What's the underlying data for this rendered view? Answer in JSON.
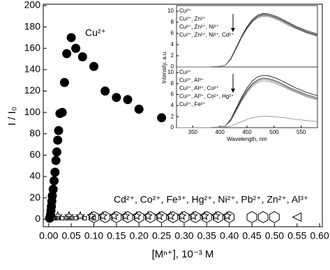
{
  "chart_data": [
    {
      "type": "scatter",
      "ylabel": "I / I₀",
      "xlabel": "[Mⁿ⁺], 10⁻³ M",
      "annotations": [
        "Cu²⁺",
        "Cd²⁺, Co²⁺, Fe³⁺, Hg²⁺, Ni²⁺, Pb²⁺, Zn²⁺, Al³⁺"
      ],
      "xlim": [
        -0.012,
        0.606
      ],
      "ylim": [
        -7,
        200
      ],
      "xticks": [
        {
          "value": 0,
          "label": "0.00"
        },
        {
          "value": 0.05,
          "label": "0.05"
        },
        {
          "value": 0.1,
          "label": "0.10"
        },
        {
          "value": 0.15,
          "label": "0.15"
        },
        {
          "value": 0.2,
          "label": "0.20"
        },
        {
          "value": 0.25,
          "label": "0.25"
        },
        {
          "value": 0.3,
          "label": "0.30"
        },
        {
          "value": 0.35,
          "label": "0.35"
        },
        {
          "value": 0.4,
          "label": "0.40"
        },
        {
          "value": 0.45,
          "label": "0.45"
        },
        {
          "value": 0.5,
          "label": "0.50"
        },
        {
          "value": 0.55,
          "label": "0.55"
        },
        {
          "value": 0.6,
          "label": "0.60"
        }
      ],
      "yticks": [
        0,
        20,
        40,
        60,
        80,
        100,
        120,
        140,
        160,
        180,
        200
      ],
      "series": [
        {
          "marker": "circle-filled",
          "color": "#000000",
          "x": [
            0.002,
            0.004,
            0.005,
            0.006,
            0.007,
            0.008,
            0.01,
            0.012,
            0.014,
            0.016,
            0.018,
            0.02,
            0.022,
            0.025,
            0.03,
            0.035,
            0.04,
            0.05,
            0.06,
            0.075,
            0.1,
            0.125,
            0.15,
            0.175,
            0.2,
            0.25
          ],
          "values": [
            1,
            4,
            8,
            12,
            17,
            22,
            28,
            36,
            44,
            55,
            63,
            74,
            83,
            99,
            100,
            128,
            155,
            170,
            160,
            152,
            143,
            120,
            114,
            112,
            103,
            95
          ]
        },
        {
          "marker": "square",
          "color": "#000000",
          "x": [
            0.002,
            0.005,
            0.01,
            0.015,
            0.02,
            0.03,
            0.04,
            0.05,
            0.06,
            0.08,
            0.1
          ],
          "values": [
            1,
            1,
            1,
            1,
            1,
            1,
            1,
            1,
            1,
            1,
            1
          ]
        },
        {
          "marker": "star",
          "color": "#000000",
          "x": [
            0.02,
            0.045,
            0.07,
            0.095,
            0.12,
            0.145,
            0.17,
            0.195,
            0.22,
            0.245,
            0.27,
            0.295,
            0.32,
            0.345,
            0.37,
            0.395
          ],
          "values": [
            3,
            3,
            3,
            3,
            3,
            3,
            3,
            3,
            3,
            3,
            3,
            3,
            3,
            3,
            3,
            3
          ]
        },
        {
          "marker": "hexagon",
          "color": "#000000",
          "x": [
            0.1,
            0.125,
            0.15,
            0.175,
            0.2,
            0.225,
            0.25,
            0.275,
            0.3,
            0.325,
            0.35,
            0.375,
            0.4,
            0.45,
            0.475,
            0.5
          ],
          "values": [
            2,
            2,
            2,
            2,
            2,
            2,
            2,
            2,
            2,
            2,
            2,
            2,
            2,
            2,
            2,
            2
          ]
        },
        {
          "marker": "triangle-left",
          "color": "#000000",
          "x": [
            0.55
          ],
          "values": [
            2
          ]
        }
      ]
    },
    {
      "type": "line",
      "xlim": [
        320,
        580
      ],
      "ylim": [
        0,
        11
      ],
      "yticks": [
        0,
        2,
        4,
        6,
        8,
        10
      ],
      "x": [
        320,
        340,
        360,
        380,
        400,
        410,
        420,
        430,
        440,
        450,
        460,
        470,
        480,
        490,
        500,
        510,
        520,
        530,
        540,
        550,
        560,
        570,
        580
      ],
      "series": [
        {
          "name": "Cu²⁺",
          "color": "#000000",
          "values": [
            0,
            0,
            0,
            0,
            0.1,
            0.3,
            1.5,
            3.5,
            5.5,
            7.2,
            8.5,
            9.3,
            9.6,
            9.5,
            9.2,
            8.8,
            8.3,
            7.8,
            7.3,
            6.9,
            6.5,
            6.2,
            5.9
          ]
        },
        {
          "name": "Cu²⁺, Zn²⁺",
          "color": "#333333",
          "values": [
            0,
            0,
            0,
            0,
            0.1,
            0.3,
            1.4,
            3.4,
            5.4,
            7.0,
            8.3,
            9.1,
            9.4,
            9.3,
            9.0,
            8.6,
            8.1,
            7.6,
            7.1,
            6.7,
            6.3,
            6.0,
            5.7
          ]
        },
        {
          "name": "Cu²⁺, Zn²⁺, Ni²⁺",
          "color": "#555555",
          "values": [
            0,
            0,
            0,
            0,
            0.1,
            0.3,
            1.4,
            3.3,
            5.3,
            6.9,
            8.2,
            9.0,
            9.3,
            9.2,
            8.9,
            8.5,
            8.0,
            7.5,
            7.0,
            6.6,
            6.2,
            5.9,
            5.6
          ]
        },
        {
          "name": "Cu²⁺, Zn²⁺, Ni²⁺, Cd²⁺",
          "color": "#777777",
          "values": [
            0,
            0,
            0,
            0,
            0.1,
            0.3,
            1.3,
            3.2,
            5.2,
            6.8,
            8.1,
            8.8,
            9.1,
            9.0,
            8.7,
            8.3,
            7.8,
            7.3,
            6.9,
            6.5,
            6.1,
            5.8,
            5.5
          ]
        }
      ]
    },
    {
      "type": "line",
      "xlim": [
        320,
        580
      ],
      "ylim": [
        0,
        11
      ],
      "yticks": [
        0,
        2,
        4,
        6,
        8,
        10
      ],
      "xlabel": "Wavelength, nm",
      "ylabel": "Intensity, a.u.",
      "xticks": [
        350,
        400,
        450,
        500,
        550
      ],
      "x": [
        320,
        340,
        360,
        380,
        400,
        410,
        420,
        430,
        440,
        450,
        460,
        470,
        480,
        490,
        500,
        510,
        520,
        530,
        540,
        550,
        560,
        570,
        580
      ],
      "series": [
        {
          "name": "Cu²⁺",
          "color": "#000000",
          "values": [
            0,
            0,
            0,
            0,
            0.1,
            0.3,
            1.5,
            3.5,
            5.5,
            7.2,
            8.5,
            9.2,
            9.5,
            9.4,
            9.1,
            8.7,
            8.2,
            7.7,
            7.2,
            6.8,
            6.4,
            6.1,
            5.8
          ]
        },
        {
          "name": "Cu²⁺, Al³⁺",
          "color": "#333333",
          "values": [
            0,
            0,
            0,
            0,
            0.1,
            0.3,
            1.4,
            3.3,
            5.2,
            6.8,
            8.0,
            8.7,
            9.0,
            8.9,
            8.6,
            8.2,
            7.7,
            7.2,
            6.8,
            6.4,
            6.0,
            5.7,
            5.4
          ]
        },
        {
          "name": "Cu²⁺, Al³⁺, Co²⁺",
          "color": "#555555",
          "values": [
            0,
            0,
            0,
            0,
            0.1,
            0.3,
            1.3,
            3.2,
            5.0,
            6.6,
            7.8,
            8.5,
            8.8,
            8.7,
            8.4,
            8.0,
            7.5,
            7.0,
            6.6,
            6.2,
            5.8,
            5.5,
            5.2
          ]
        },
        {
          "name": "Cu²⁺, Al³⁺, Co²⁺, Hg²⁺",
          "color": "#777777",
          "values": [
            0,
            0,
            0,
            0,
            0.1,
            0.3,
            1.2,
            3.0,
            4.8,
            6.3,
            7.5,
            8.2,
            8.5,
            8.4,
            8.1,
            7.7,
            7.3,
            6.8,
            6.4,
            6.0,
            5.6,
            5.3,
            5.0
          ]
        },
        {
          "name": "Cu²⁺, Fe³⁺",
          "color": "#888888",
          "values": [
            0,
            0,
            0,
            0,
            0,
            0.1,
            0.3,
            0.7,
            1.1,
            1.5,
            1.8,
            2.0,
            2.1,
            2.05,
            2.0,
            1.9,
            1.8,
            1.65,
            1.5,
            1.4,
            1.3,
            1.2,
            1.1
          ]
        }
      ]
    }
  ]
}
